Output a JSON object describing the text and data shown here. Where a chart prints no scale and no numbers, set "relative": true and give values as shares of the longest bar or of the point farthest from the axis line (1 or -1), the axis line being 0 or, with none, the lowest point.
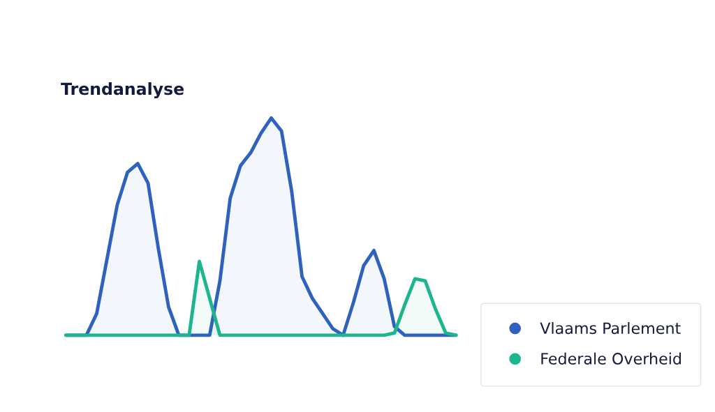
{
  "chart_data": {
    "type": "area",
    "title": "Trendanalyse",
    "relative": true,
    "legend": "bottom right",
    "categories": [
      null,
      null,
      null,
      null,
      null,
      null,
      null,
      null,
      null,
      null,
      null,
      null,
      null,
      null,
      null,
      null,
      null,
      null,
      null,
      null,
      null,
      null,
      null,
      null,
      null,
      null,
      null,
      null,
      null,
      null,
      null,
      null,
      null,
      null,
      null,
      null,
      null,
      null,
      null
    ],
    "series": [
      {
        "name": "Vlaams Parlement",
        "color": "#2f62be",
        "values": [
          0,
          0,
          0,
          0.1,
          0.35,
          0.6,
          0.75,
          0.79,
          0.7,
          0.4,
          0.13,
          0,
          0,
          0,
          0,
          0.25,
          0.63,
          0.78,
          0.84,
          0.93,
          1,
          0.94,
          0.66,
          0.27,
          0.17,
          0.1,
          0.03,
          0,
          0.15,
          0.32,
          0.39,
          0.26,
          0.04,
          0,
          0,
          0,
          0,
          0,
          0
        ]
      },
      {
        "name": "Federale Overheid",
        "color": "#1db58e",
        "values": [
          0,
          0,
          0,
          0,
          0,
          0,
          0,
          0,
          0,
          0,
          0,
          0,
          0,
          0.34,
          0.17,
          0,
          0,
          0,
          0,
          0,
          0,
          0,
          0,
          0,
          0,
          0,
          0,
          0,
          0,
          0,
          0,
          0,
          0.01,
          0.14,
          0.26,
          0.25,
          0.12,
          0.01,
          0
        ]
      }
    ]
  }
}
